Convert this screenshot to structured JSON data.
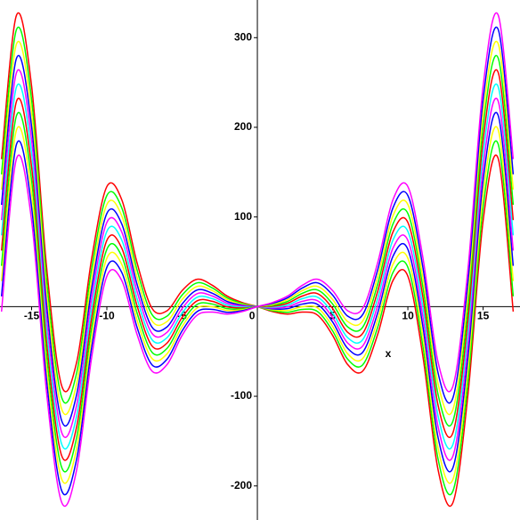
{
  "chart_data": {
    "type": "line",
    "x_label": "x",
    "x": [
      -17,
      -16,
      -15,
      -14,
      -13,
      -12,
      -11,
      -10,
      -9,
      -8,
      -7,
      -6,
      -5,
      -4,
      -3,
      -2,
      -1,
      0,
      1,
      2,
      3,
      4,
      5,
      6,
      7,
      8,
      9,
      10,
      11,
      12,
      13,
      14,
      15,
      16,
      17
    ],
    "series": [
      {
        "color": "#ff0000",
        "values": [
          164.5,
          325.2,
          245.9,
          43.2,
          -88.4,
          -61.5,
          54.5,
          133.9,
          118.8,
          49.3,
          -1.9,
          -4.6,
          17.9,
          30.5,
          23.9,
          11.7,
          4.5,
          0,
          -5.5,
          -8.3,
          -6.1,
          -9.5,
          -32.1,
          -64.6,
          -71.9,
          -30.7,
          28.8,
          33.9,
          -55.5,
          -181.5,
          -218.4,
          -96.8,
          95.9,
          165.2,
          -5.5
        ]
      },
      {
        "color": "#00ff00",
        "values": [
          147.5,
          309.2,
          230.9,
          29.2,
          -101.4,
          -73.5,
          43.5,
          123.9,
          109.8,
          41.3,
          -8.9,
          -10.6,
          12.9,
          26.5,
          20.9,
          9.7,
          3.5,
          0,
          -4.5,
          -6.3,
          -3.1,
          -5.5,
          -27.1,
          -58.6,
          -64.9,
          -22.7,
          37.8,
          43.9,
          -44.5,
          -169.5,
          -205.4,
          -82.8,
          110.9,
          181.2,
          11.5
        ]
      },
      {
        "color": "#ffff00",
        "values": [
          130.5,
          293.2,
          215.9,
          15.2,
          -114.4,
          -85.5,
          32.5,
          113.9,
          100.8,
          33.3,
          -15.9,
          -16.6,
          7.9,
          22.5,
          17.9,
          7.7,
          2.5,
          0,
          -3.5,
          -4.3,
          -0.1,
          -1.5,
          -22.1,
          -52.6,
          -57.9,
          -14.7,
          46.8,
          53.9,
          -33.5,
          -157.5,
          -192.4,
          -68.8,
          125.9,
          197.2,
          28.5
        ]
      },
      {
        "color": "#0000ff",
        "values": [
          113.5,
          277.2,
          200.9,
          1.2,
          -127.4,
          -97.5,
          21.5,
          103.9,
          91.8,
          25.3,
          -22.9,
          -22.6,
          2.9,
          18.5,
          14.9,
          5.7,
          1.5,
          0,
          -2.5,
          -2.3,
          2.9,
          2.5,
          -17.1,
          -46.6,
          -50.9,
          -6.7,
          55.8,
          63.9,
          -22.5,
          -145.5,
          -179.4,
          -54.8,
          140.9,
          213.2,
          45.5
        ]
      },
      {
        "color": "#ff00ff",
        "values": [
          96.5,
          261.2,
          185.9,
          -12.8,
          -140.4,
          -109.5,
          10.5,
          93.9,
          82.8,
          17.3,
          -29.9,
          -28.6,
          -2.1,
          14.5,
          11.9,
          3.7,
          0.5,
          0,
          -1.5,
          -0.3,
          5.9,
          6.5,
          -12.1,
          -40.6,
          -43.9,
          1.3,
          64.8,
          73.9,
          -11.5,
          -133.5,
          -166.4,
          -40.8,
          155.9,
          229.2,
          62.5
        ]
      },
      {
        "color": "#00ffff",
        "values": [
          79.5,
          245.2,
          170.9,
          -26.8,
          -153.4,
          -121.5,
          -0.5,
          83.9,
          73.8,
          9.3,
          -36.9,
          -34.6,
          -7.1,
          10.5,
          8.9,
          1.7,
          -0.5,
          0,
          -0.5,
          1.7,
          8.9,
          10.5,
          -7.1,
          -34.6,
          -36.9,
          9.3,
          73.8,
          83.9,
          -0.5,
          -121.5,
          -153.4,
          -26.8,
          170.9,
          245.2,
          79.5
        ]
      },
      {
        "color": "#ff0000",
        "values": [
          62.5,
          229.2,
          155.9,
          -40.8,
          -166.4,
          -133.5,
          -11.5,
          73.9,
          64.8,
          1.3,
          -43.9,
          -40.6,
          -12.1,
          6.5,
          5.9,
          -0.3,
          -1.5,
          0,
          0.5,
          3.7,
          11.9,
          14.5,
          -2.1,
          -28.6,
          -29.9,
          17.3,
          82.8,
          93.9,
          10.5,
          -109.5,
          -140.4,
          -12.8,
          185.9,
          261.2,
          96.5
        ]
      },
      {
        "color": "#00ff00",
        "values": [
          45.5,
          213.2,
          140.9,
          -54.8,
          -179.4,
          -145.5,
          -22.5,
          63.9,
          55.8,
          -6.7,
          -50.9,
          -46.6,
          -17.1,
          2.5,
          2.9,
          -2.3,
          -2.5,
          0,
          1.5,
          5.7,
          14.9,
          18.5,
          2.9,
          -22.6,
          -22.9,
          25.3,
          91.8,
          103.9,
          21.5,
          -97.5,
          -127.4,
          1.2,
          200.9,
          277.2,
          113.5
        ]
      },
      {
        "color": "#ffff00",
        "values": [
          28.5,
          197.2,
          125.9,
          -68.8,
          -192.4,
          -157.5,
          -33.5,
          53.9,
          46.8,
          -14.7,
          -57.9,
          -52.6,
          -22.1,
          -1.5,
          -0.1,
          -4.3,
          -3.5,
          0,
          2.5,
          7.7,
          17.9,
          22.5,
          7.9,
          -16.6,
          -15.9,
          33.3,
          100.8,
          113.9,
          32.5,
          -85.5,
          -114.4,
          15.2,
          215.9,
          293.2,
          130.5
        ]
      },
      {
        "color": "#0000ff",
        "values": [
          11.5,
          181.2,
          110.9,
          -82.8,
          -205.4,
          -169.5,
          -44.5,
          43.9,
          37.8,
          -22.7,
          -64.9,
          -58.6,
          -27.1,
          -5.5,
          -3.1,
          -6.3,
          -4.5,
          0,
          3.5,
          9.7,
          20.9,
          26.5,
          12.9,
          -10.6,
          -8.9,
          41.3,
          109.8,
          123.9,
          43.5,
          -73.5,
          -101.4,
          29.2,
          230.9,
          309.2,
          147.5
        ]
      },
      {
        "color": "#ff00ff",
        "values": [
          -5.5,
          165.2,
          95.9,
          -96.8,
          -218.4,
          -181.5,
          -55.5,
          33.9,
          28.8,
          -30.7,
          -71.9,
          -64.6,
          -32.1,
          -9.5,
          -6.1,
          -8.3,
          -5.5,
          0,
          4.5,
          11.7,
          23.9,
          30.5,
          17.9,
          -4.6,
          -1.9,
          49.3,
          118.8,
          133.9,
          54.5,
          -61.5,
          -88.4,
          43.2,
          245.9,
          325.2,
          164.5
        ]
      }
    ],
    "xlim": [
      -17.1,
      17.45
    ],
    "ylim": [
      -238,
      342
    ],
    "xticks": [
      -15,
      -10,
      -5,
      0,
      5,
      10,
      15
    ],
    "yticks": [
      -200,
      -100,
      100,
      200,
      300
    ]
  }
}
